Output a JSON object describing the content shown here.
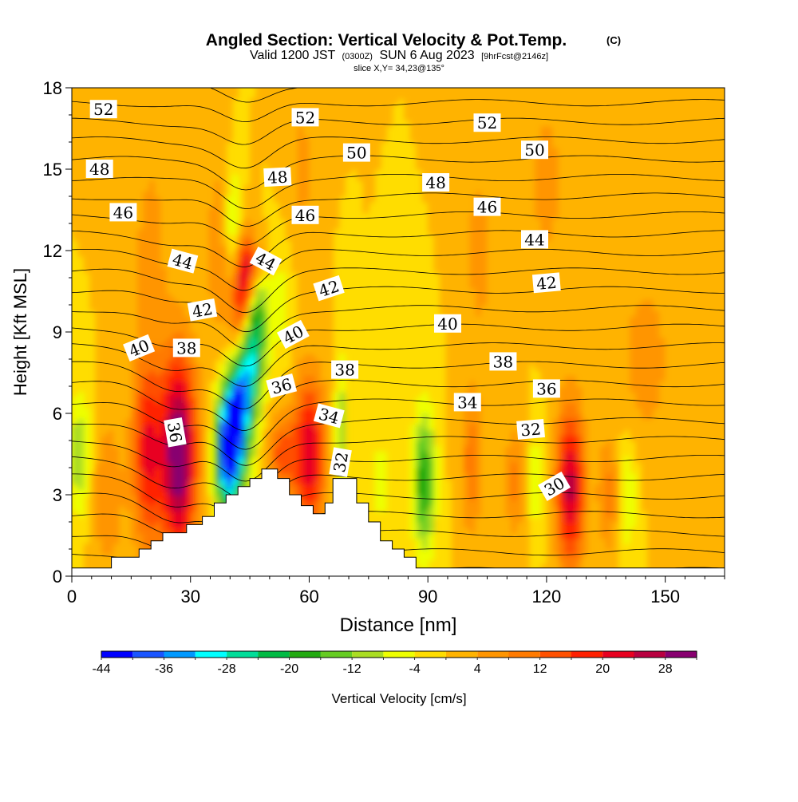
{
  "title": {
    "main": "Angled Section: Vertical Velocity & Pot.Temp.",
    "main_suffix": "(C)",
    "valid_a": "Valid 1200 JST",
    "valid_b": "(0300Z)",
    "valid_c": "SUN 6 Aug 2023",
    "valid_d": "[9hrFcst@2146z]",
    "slice": "slice X,Y= 34,23@135°"
  },
  "chart_data": {
    "type": "heatmap",
    "xlabel": "Distance [nm]",
    "ylabel": "Height [Kft MSL]",
    "xlim": [
      0,
      165
    ],
    "ylim": [
      0,
      18
    ],
    "x_ticks": [
      0,
      30,
      60,
      90,
      120,
      150
    ],
    "y_ticks": [
      0,
      3,
      6,
      9,
      12,
      15,
      18
    ],
    "background_value": 0,
    "colorbar": {
      "label": "Vertical Velocity [cm/s]",
      "min": -44,
      "max": 32,
      "step": 4,
      "tick_values": [
        -44,
        -36,
        -28,
        -20,
        -12,
        -4,
        4,
        12,
        20,
        28
      ],
      "colors": [
        "#0000ff",
        "#1a55ff",
        "#0099ff",
        "#00ffff",
        "#00dd99",
        "#00bb44",
        "#22aa11",
        "#66cc22",
        "#aadd22",
        "#eeff00",
        "#ffdd00",
        "#ffb300",
        "#ff9500",
        "#ff7a00",
        "#ff5000",
        "#ff2000",
        "#e80020",
        "#b80040",
        "#880070"
      ]
    },
    "terrain": [
      [
        0,
        0.3
      ],
      [
        10,
        0.3
      ],
      [
        10,
        0.7
      ],
      [
        17,
        0.7
      ],
      [
        17,
        1.0
      ],
      [
        20,
        1.0
      ],
      [
        20,
        1.3
      ],
      [
        23,
        1.3
      ],
      [
        23,
        1.6
      ],
      [
        29,
        1.6
      ],
      [
        29,
        1.9
      ],
      [
        33,
        1.9
      ],
      [
        33,
        2.2
      ],
      [
        36,
        2.2
      ],
      [
        36,
        2.7
      ],
      [
        39,
        2.7
      ],
      [
        39,
        3.0
      ],
      [
        42,
        3.0
      ],
      [
        42,
        3.3
      ],
      [
        45,
        3.3
      ],
      [
        45,
        3.6
      ],
      [
        48,
        3.6
      ],
      [
        48,
        3.95
      ],
      [
        52,
        3.95
      ],
      [
        52,
        3.6
      ],
      [
        55,
        3.6
      ],
      [
        55,
        3.0
      ],
      [
        58,
        3.0
      ],
      [
        58,
        2.6
      ],
      [
        61,
        2.6
      ],
      [
        61,
        2.3
      ],
      [
        64,
        2.3
      ],
      [
        64,
        2.7
      ],
      [
        66,
        2.7
      ],
      [
        66,
        3.6
      ],
      [
        72,
        3.6
      ],
      [
        72,
        2.7
      ],
      [
        75,
        2.7
      ],
      [
        75,
        2.0
      ],
      [
        78,
        2.0
      ],
      [
        78,
        1.3
      ],
      [
        81,
        1.3
      ],
      [
        81,
        1.0
      ],
      [
        84,
        1.0
      ],
      [
        84,
        0.7
      ],
      [
        87,
        0.7
      ],
      [
        87,
        0.3
      ],
      [
        165,
        0.3
      ]
    ],
    "updrafts": [
      {
        "x": 27,
        "y": 4.5,
        "sx": 3.2,
        "sy": 2.6,
        "amp": 34
      },
      {
        "x": 19,
        "y": 4.6,
        "sx": 2.6,
        "sy": 2.5,
        "amp": 20
      },
      {
        "x": 43,
        "y": 9.8,
        "sx": 2.0,
        "sy": 1.8,
        "amp": 26
      },
      {
        "x": 45,
        "y": 11.4,
        "sx": 2.2,
        "sy": 0.9,
        "amp": 14
      },
      {
        "x": 53,
        "y": 4.5,
        "sx": 2.4,
        "sy": 1.0,
        "amp": 14
      },
      {
        "x": 60,
        "y": 4.5,
        "sx": 2.8,
        "sy": 2.0,
        "amp": 24
      },
      {
        "x": 126,
        "y": 3.3,
        "sx": 2.5,
        "sy": 2.1,
        "amp": 26
      },
      {
        "x": 136,
        "y": 3.0,
        "sx": 2.2,
        "sy": 1.5,
        "amp": 10
      },
      {
        "x": 101,
        "y": 4.2,
        "sx": 2.0,
        "sy": 2.0,
        "amp": 10
      },
      {
        "x": 112,
        "y": 3.5,
        "sx": 1.8,
        "sy": 1.5,
        "amp": 9
      },
      {
        "x": 9,
        "y": 3.0,
        "sx": 2.8,
        "sy": 2.0,
        "amp": 8
      },
      {
        "x": 37,
        "y": 12.0,
        "sx": 2.0,
        "sy": 2.6,
        "amp": 7
      },
      {
        "x": 145,
        "y": 8.0,
        "sx": 5.0,
        "sy": 2.5,
        "amp": 6
      },
      {
        "x": 120,
        "y": 14.5,
        "sx": 3.0,
        "sy": 2.5,
        "amp": 6
      },
      {
        "x": 20,
        "y": 12.5,
        "sx": 4.0,
        "sy": 3.0,
        "amp": 5
      },
      {
        "x": 103,
        "y": 12.0,
        "sx": 2.5,
        "sy": 2.5,
        "amp": 6
      },
      {
        "x": 58,
        "y": 15.0,
        "sx": 2.5,
        "sy": 2.5,
        "amp": 5
      }
    ],
    "downdrafts": [
      {
        "x": 40,
        "y": 4.8,
        "sx": 2.3,
        "sy": 1.6,
        "amp": 42
      },
      {
        "x": 44,
        "y": 7.2,
        "sx": 2.2,
        "sy": 2.0,
        "amp": 24
      },
      {
        "x": 47,
        "y": 9.2,
        "sx": 2.0,
        "sy": 1.6,
        "amp": 14
      },
      {
        "x": 41,
        "y": 12.8,
        "sx": 1.6,
        "sy": 1.5,
        "amp": 12
      },
      {
        "x": 89,
        "y": 3.5,
        "sx": 2.0,
        "sy": 1.8,
        "amp": 20
      },
      {
        "x": 68,
        "y": 5.5,
        "sx": 1.2,
        "sy": 2.0,
        "amp": 10
      },
      {
        "x": 2,
        "y": 4.5,
        "sx": 2.0,
        "sy": 1.6,
        "amp": 12
      },
      {
        "x": 140,
        "y": 3.0,
        "sx": 2.0,
        "sy": 1.6,
        "amp": 9
      },
      {
        "x": 117,
        "y": 3.5,
        "sx": 1.5,
        "sy": 1.5,
        "amp": 7
      },
      {
        "x": 53,
        "y": 10.0,
        "sx": 2.0,
        "sy": 1.5,
        "amp": 6
      },
      {
        "x": 78,
        "y": 3.5,
        "sx": 1.5,
        "sy": 1.5,
        "amp": 6
      }
    ],
    "theta_contours": {
      "levels": [
        28,
        29,
        30,
        31,
        32,
        33,
        34,
        35,
        36,
        37,
        38,
        39,
        40,
        41,
        42,
        43,
        44,
        45,
        46,
        47,
        48,
        49,
        50,
        51,
        52,
        53,
        54
      ],
      "base_height": 0.2,
      "spacing": 0.69,
      "ridge_warp": {
        "x": 44,
        "sx": 6,
        "amp": -1.6,
        "decay": 14
      },
      "lee_warp": {
        "x": 26,
        "sx": 7,
        "amp": -1.0,
        "decay": 7
      }
    },
    "contour_labels": [
      {
        "text": "52",
        "x": 8,
        "y": 17.2,
        "rot": 0
      },
      {
        "text": "52",
        "x": 59,
        "y": 16.9,
        "rot": 0
      },
      {
        "text": "52",
        "x": 105,
        "y": 16.7,
        "rot": 0
      },
      {
        "text": "50",
        "x": 72,
        "y": 15.6,
        "rot": 0
      },
      {
        "text": "50",
        "x": 117,
        "y": 15.7,
        "rot": 0
      },
      {
        "text": "48",
        "x": 7,
        "y": 15.0,
        "rot": 0
      },
      {
        "text": "48",
        "x": 52,
        "y": 14.7,
        "rot": -3
      },
      {
        "text": "48",
        "x": 92,
        "y": 14.5,
        "rot": 0
      },
      {
        "text": "46",
        "x": 13,
        "y": 13.4,
        "rot": 0
      },
      {
        "text": "46",
        "x": 59,
        "y": 13.3,
        "rot": 0
      },
      {
        "text": "46",
        "x": 105,
        "y": 13.6,
        "rot": 0
      },
      {
        "text": "44",
        "x": 117,
        "y": 12.4,
        "rot": 0
      },
      {
        "text": "44",
        "x": 28,
        "y": 11.6,
        "rot": 15
      },
      {
        "text": "44",
        "x": 49,
        "y": 11.6,
        "rot": 28
      },
      {
        "text": "42",
        "x": 120,
        "y": 10.8,
        "rot": -5
      },
      {
        "text": "42",
        "x": 65,
        "y": 10.6,
        "rot": -18
      },
      {
        "text": "42",
        "x": 33,
        "y": 9.8,
        "rot": -10
      },
      {
        "text": "40",
        "x": 95,
        "y": 9.3,
        "rot": 0
      },
      {
        "text": "40",
        "x": 56,
        "y": 8.9,
        "rot": -28
      },
      {
        "text": "40",
        "x": 17,
        "y": 8.4,
        "rot": -22
      },
      {
        "text": "38",
        "x": 29,
        "y": 8.4,
        "rot": 0
      },
      {
        "text": "38",
        "x": 69,
        "y": 7.6,
        "rot": 0
      },
      {
        "text": "38",
        "x": 109,
        "y": 7.9,
        "rot": 0
      },
      {
        "text": "36",
        "x": 120,
        "y": 6.9,
        "rot": 0
      },
      {
        "text": "36",
        "x": 53,
        "y": 7.0,
        "rot": -15
      },
      {
        "text": "36",
        "x": 26,
        "y": 5.3,
        "rot": 80
      },
      {
        "text": "34",
        "x": 100,
        "y": 6.4,
        "rot": 0
      },
      {
        "text": "34",
        "x": 65,
        "y": 5.9,
        "rot": 15
      },
      {
        "text": "32",
        "x": 116,
        "y": 5.4,
        "rot": -5
      },
      {
        "text": "32",
        "x": 68,
        "y": 4.2,
        "rot": -80
      },
      {
        "text": "30",
        "x": 122,
        "y": 3.3,
        "rot": -30
      }
    ]
  }
}
